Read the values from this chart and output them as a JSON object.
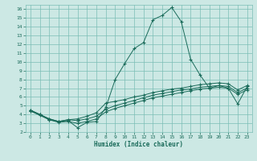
{
  "xlabel": "Humidex (Indice chaleur)",
  "bg_color": "#cce8e4",
  "grid_color": "#7bbdb5",
  "line_color": "#1a6b5a",
  "xlim": [
    -0.5,
    23.5
  ],
  "ylim": [
    2,
    16.5
  ],
  "xticks": [
    0,
    1,
    2,
    3,
    4,
    5,
    6,
    7,
    8,
    9,
    10,
    11,
    12,
    13,
    14,
    15,
    16,
    17,
    18,
    19,
    20,
    21,
    22,
    23
  ],
  "yticks": [
    2,
    3,
    4,
    5,
    6,
    7,
    8,
    9,
    10,
    11,
    12,
    13,
    14,
    15,
    16
  ],
  "curves": [
    [
      [
        0,
        4.5
      ],
      [
        1,
        4.0
      ],
      [
        2,
        3.4
      ],
      [
        3,
        3.2
      ],
      [
        4,
        3.3
      ],
      [
        5,
        2.5
      ],
      [
        6,
        3.1
      ],
      [
        7,
        3.2
      ],
      [
        8,
        4.8
      ],
      [
        9,
        8.0
      ],
      [
        10,
        9.8
      ],
      [
        11,
        11.5
      ],
      [
        12,
        12.2
      ],
      [
        13,
        14.8
      ],
      [
        14,
        15.3
      ],
      [
        15,
        16.2
      ],
      [
        16,
        14.6
      ],
      [
        17,
        10.3
      ],
      [
        18,
        8.5
      ],
      [
        19,
        7.0
      ],
      [
        20,
        7.3
      ],
      [
        21,
        7.0
      ],
      [
        22,
        5.2
      ],
      [
        23,
        7.2
      ]
    ],
    [
      [
        0,
        4.5
      ],
      [
        1,
        4.0
      ],
      [
        2,
        3.5
      ],
      [
        3,
        3.2
      ],
      [
        4,
        3.4
      ],
      [
        5,
        3.5
      ],
      [
        6,
        3.8
      ],
      [
        7,
        4.2
      ],
      [
        8,
        5.3
      ],
      [
        9,
        5.5
      ],
      [
        10,
        5.7
      ],
      [
        11,
        6.0
      ],
      [
        12,
        6.2
      ],
      [
        13,
        6.5
      ],
      [
        14,
        6.7
      ],
      [
        15,
        6.9
      ],
      [
        16,
        7.0
      ],
      [
        17,
        7.2
      ],
      [
        18,
        7.4
      ],
      [
        19,
        7.5
      ],
      [
        20,
        7.6
      ],
      [
        21,
        7.5
      ],
      [
        22,
        6.8
      ],
      [
        23,
        7.3
      ]
    ],
    [
      [
        0,
        4.4
      ],
      [
        1,
        4.0
      ],
      [
        2,
        3.5
      ],
      [
        3,
        3.2
      ],
      [
        4,
        3.4
      ],
      [
        5,
        3.3
      ],
      [
        6,
        3.5
      ],
      [
        7,
        3.8
      ],
      [
        8,
        4.6
      ],
      [
        9,
        5.0
      ],
      [
        10,
        5.3
      ],
      [
        11,
        5.6
      ],
      [
        12,
        5.9
      ],
      [
        13,
        6.2
      ],
      [
        14,
        6.4
      ],
      [
        15,
        6.6
      ],
      [
        16,
        6.8
      ],
      [
        17,
        6.9
      ],
      [
        18,
        7.1
      ],
      [
        19,
        7.2
      ],
      [
        20,
        7.3
      ],
      [
        21,
        7.2
      ],
      [
        22,
        6.5
      ],
      [
        23,
        7.0
      ]
    ],
    [
      [
        0,
        4.4
      ],
      [
        1,
        3.9
      ],
      [
        2,
        3.4
      ],
      [
        3,
        3.1
      ],
      [
        4,
        3.2
      ],
      [
        5,
        3.0
      ],
      [
        6,
        3.2
      ],
      [
        7,
        3.5
      ],
      [
        8,
        4.3
      ],
      [
        9,
        4.7
      ],
      [
        10,
        5.0
      ],
      [
        11,
        5.3
      ],
      [
        12,
        5.6
      ],
      [
        13,
        5.9
      ],
      [
        14,
        6.1
      ],
      [
        15,
        6.3
      ],
      [
        16,
        6.5
      ],
      [
        17,
        6.7
      ],
      [
        18,
        6.9
      ],
      [
        19,
        7.0
      ],
      [
        20,
        7.1
      ],
      [
        21,
        7.0
      ],
      [
        22,
        6.3
      ],
      [
        23,
        6.8
      ]
    ]
  ]
}
